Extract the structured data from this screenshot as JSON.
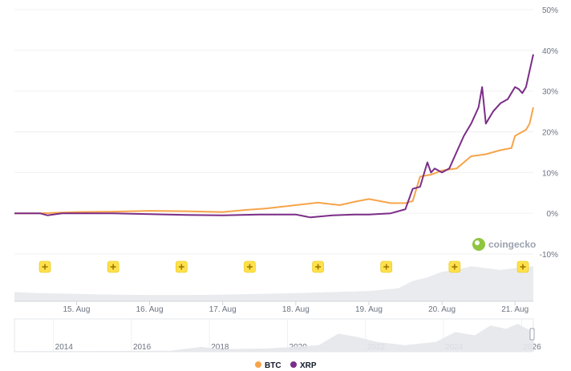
{
  "chart_data": {
    "type": "line",
    "y_axis": {
      "ticks": [
        "50%",
        "40%",
        "30%",
        "20%",
        "10%",
        "0%",
        "-10%"
      ],
      "range": [
        -10,
        50
      ],
      "unit": "%"
    },
    "x_axis": {
      "ticks": [
        "15. Aug",
        "16. Aug",
        "17. Aug",
        "18. Aug",
        "19. Aug",
        "20. Aug",
        "21. Aug"
      ],
      "range": [
        14.15,
        21.25
      ]
    },
    "series": [
      {
        "name": "BTC",
        "color": "#f7a44a",
        "x": [
          14.15,
          14.5,
          15.0,
          15.5,
          16.0,
          16.5,
          17.0,
          17.3,
          17.6,
          18.0,
          18.3,
          18.6,
          18.8,
          19.0,
          19.3,
          19.5,
          19.6,
          19.7,
          19.85,
          20.0,
          20.2,
          20.4,
          20.6,
          20.8,
          20.95,
          21.0,
          21.1,
          21.15,
          21.2,
          21.25
        ],
        "values": [
          0,
          0,
          0.3,
          0.4,
          0.6,
          0.5,
          0.3,
          0.8,
          1.2,
          2.0,
          2.6,
          2.0,
          2.8,
          3.5,
          2.5,
          2.5,
          3.0,
          9.0,
          9.5,
          10.5,
          11.0,
          14.0,
          14.5,
          15.5,
          16.0,
          19.0,
          20.0,
          20.5,
          22.0,
          26.0
        ]
      },
      {
        "name": "XRP",
        "color": "#7b2d87",
        "x": [
          14.15,
          14.5,
          14.6,
          14.8,
          15.0,
          15.5,
          16.0,
          16.5,
          17.0,
          17.5,
          18.0,
          18.2,
          18.5,
          18.8,
          19.0,
          19.3,
          19.5,
          19.6,
          19.7,
          19.8,
          19.85,
          19.9,
          19.95,
          20.0,
          20.1,
          20.2,
          20.3,
          20.4,
          20.5,
          20.55,
          20.6,
          20.7,
          20.8,
          20.9,
          21.0,
          21.05,
          21.1,
          21.15,
          21.2,
          21.25
        ],
        "values": [
          0,
          0,
          -0.5,
          0,
          0,
          0,
          -0.2,
          -0.4,
          -0.5,
          -0.3,
          -0.3,
          -1.0,
          -0.5,
          -0.3,
          -0.3,
          0,
          1.0,
          6.0,
          6.5,
          12.5,
          10.0,
          11.0,
          10.5,
          10.0,
          11.0,
          15.0,
          19.0,
          22.0,
          26.0,
          31.0,
          22.0,
          25.0,
          27.0,
          28.0,
          31.0,
          30.5,
          29.5,
          31.0,
          35.0,
          39.0
        ]
      }
    ],
    "volume": {
      "description": "",
      "x": [
        14.15,
        14.5,
        15.0,
        15.5,
        16.0,
        16.5,
        17.0,
        17.5,
        18.0,
        18.5,
        19.0,
        19.4,
        19.6,
        19.8,
        20.0,
        20.2,
        20.4,
        20.6,
        20.8,
        21.0,
        21.25
      ],
      "values": [
        0.25,
        0.22,
        0.2,
        0.18,
        0.17,
        0.17,
        0.18,
        0.2,
        0.22,
        0.25,
        0.28,
        0.35,
        0.55,
        0.65,
        0.8,
        0.85,
        0.95,
        0.9,
        0.85,
        0.9,
        0.95
      ]
    },
    "navigator": {
      "years": [
        "2014",
        "2016",
        "2018",
        "2020",
        "2022",
        "2024",
        "2026"
      ],
      "range": [
        2013.0,
        2026.3
      ]
    },
    "event_markers": {
      "count": 8,
      "icon": "plus-badge-icon",
      "color": "#ffe14d"
    },
    "watermark": "coingecko",
    "legend": {
      "placement": "bottom-center",
      "items": [
        {
          "label": "BTC",
          "color": "#f7a44a"
        },
        {
          "label": "XRP",
          "color": "#7b2d87"
        }
      ]
    },
    "grid": true
  }
}
